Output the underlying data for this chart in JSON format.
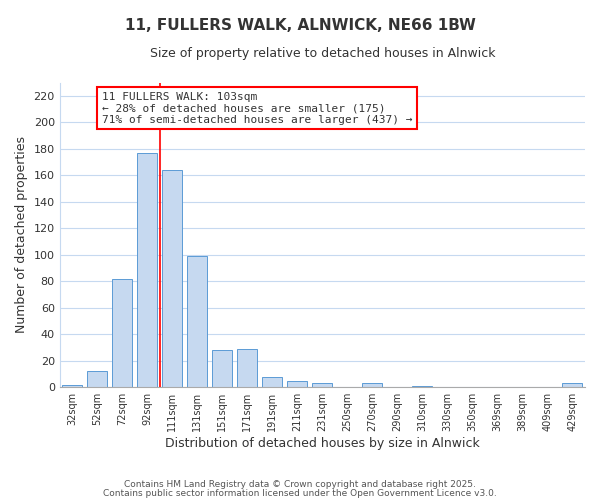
{
  "title": "11, FULLERS WALK, ALNWICK, NE66 1BW",
  "subtitle": "Size of property relative to detached houses in Alnwick",
  "xlabel": "Distribution of detached houses by size in Alnwick",
  "ylabel": "Number of detached properties",
  "bar_color": "#c6d9f0",
  "bar_edge_color": "#5b9bd5",
  "background_color": "#ffffff",
  "grid_color": "#c6d9f0",
  "categories": [
    "32sqm",
    "52sqm",
    "72sqm",
    "92sqm",
    "111sqm",
    "131sqm",
    "151sqm",
    "171sqm",
    "191sqm",
    "211sqm",
    "231sqm",
    "250sqm",
    "270sqm",
    "290sqm",
    "310sqm",
    "330sqm",
    "350sqm",
    "369sqm",
    "389sqm",
    "409sqm",
    "429sqm"
  ],
  "values": [
    2,
    12,
    82,
    177,
    164,
    99,
    28,
    29,
    8,
    5,
    3,
    0,
    3,
    0,
    1,
    0,
    0,
    0,
    0,
    0,
    3
  ],
  "ylim": [
    0,
    230
  ],
  "yticks": [
    0,
    20,
    40,
    60,
    80,
    100,
    120,
    140,
    160,
    180,
    200,
    220
  ],
  "annotation_line1": "11 FULLERS WALK: 103sqm",
  "annotation_line2": "← 28% of detached houses are smaller (175)",
  "annotation_line3": "71% of semi-detached houses are larger (437) →",
  "marker_bar_index": 3,
  "footer_line1": "Contains HM Land Registry data © Crown copyright and database right 2025.",
  "footer_line2": "Contains public sector information licensed under the Open Government Licence v3.0."
}
